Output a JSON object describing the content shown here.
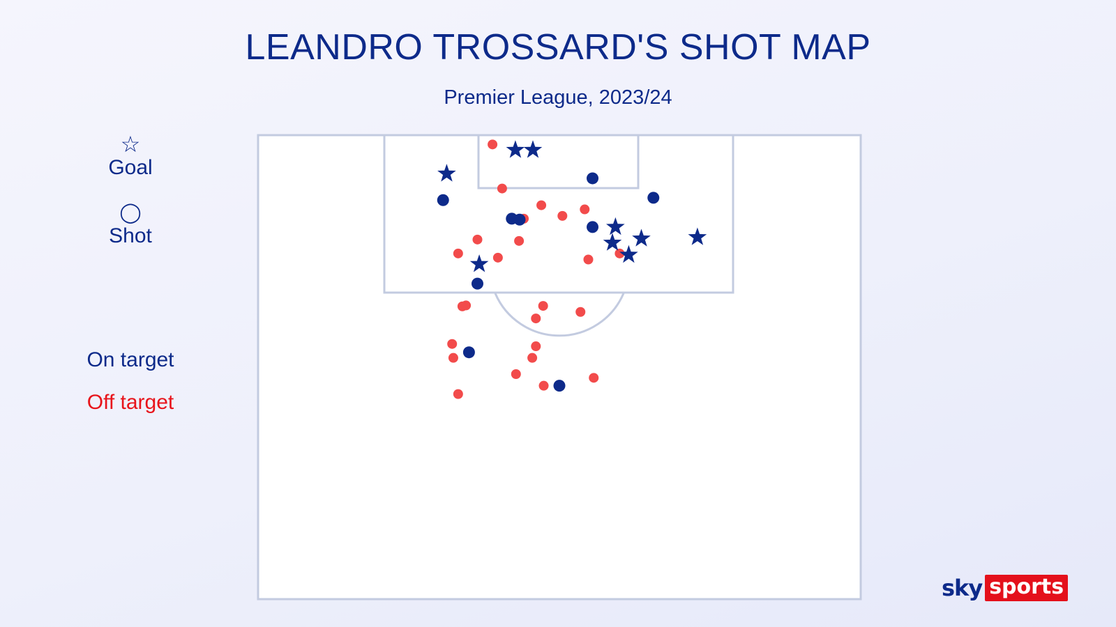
{
  "header": {
    "title": "LEANDRO TROSSARD'S SHOT MAP",
    "subtitle": "Premier League, 2023/24"
  },
  "legend": {
    "goal_symbol": "☆",
    "goal_label": "Goal",
    "shot_symbol": "◯",
    "shot_label": "Shot",
    "on_target_label": "On target",
    "off_target_label": "Off target"
  },
  "colors": {
    "on_target": "#0d2a8a",
    "off_target": "#f24b4b",
    "off_target_text": "#e8141b",
    "pitch_lines": "#c3cbe0",
    "pitch_fill": "#ffffff"
  },
  "logo": {
    "sky": "sky",
    "sports": "sports"
  },
  "chart_data": {
    "type": "scatter",
    "title": "LEANDRO TROSSARD'S SHOT MAP",
    "subtitle": "Premier League, 2023/24",
    "x_unit": "pitch width fraction (0 = left touchline, 1 = right touchline)",
    "y_unit": "distance from goal line as fraction of half-pitch length",
    "goals": [
      {
        "x": 0.427,
        "y": 0.032
      },
      {
        "x": 0.456,
        "y": 0.032
      },
      {
        "x": 0.313,
        "y": 0.083
      },
      {
        "x": 0.588,
        "y": 0.232
      },
      {
        "x": 0.615,
        "y": 0.258
      },
      {
        "x": 0.593,
        "y": 0.198
      },
      {
        "x": 0.636,
        "y": 0.223
      },
      {
        "x": 0.729,
        "y": 0.22
      },
      {
        "x": 0.367,
        "y": 0.278
      }
    ],
    "on_target_shots": [
      {
        "x": 0.555,
        "y": 0.093
      },
      {
        "x": 0.307,
        "y": 0.14
      },
      {
        "x": 0.421,
        "y": 0.18
      },
      {
        "x": 0.434,
        "y": 0.182
      },
      {
        "x": 0.555,
        "y": 0.198
      },
      {
        "x": 0.656,
        "y": 0.135
      },
      {
        "x": 0.364,
        "y": 0.32
      },
      {
        "x": 0.35,
        "y": 0.468
      },
      {
        "x": 0.5,
        "y": 0.54
      }
    ],
    "off_target_shots": [
      {
        "x": 0.389,
        "y": 0.02
      },
      {
        "x": 0.405,
        "y": 0.115
      },
      {
        "x": 0.441,
        "y": 0.18
      },
      {
        "x": 0.47,
        "y": 0.151
      },
      {
        "x": 0.505,
        "y": 0.174
      },
      {
        "x": 0.542,
        "y": 0.16
      },
      {
        "x": 0.364,
        "y": 0.225
      },
      {
        "x": 0.433,
        "y": 0.228
      },
      {
        "x": 0.332,
        "y": 0.255
      },
      {
        "x": 0.398,
        "y": 0.264
      },
      {
        "x": 0.6,
        "y": 0.255
      },
      {
        "x": 0.548,
        "y": 0.268
      },
      {
        "x": 0.345,
        "y": 0.367
      },
      {
        "x": 0.339,
        "y": 0.369
      },
      {
        "x": 0.473,
        "y": 0.368
      },
      {
        "x": 0.535,
        "y": 0.381
      },
      {
        "x": 0.461,
        "y": 0.395
      },
      {
        "x": 0.322,
        "y": 0.45
      },
      {
        "x": 0.461,
        "y": 0.455
      },
      {
        "x": 0.324,
        "y": 0.48
      },
      {
        "x": 0.455,
        "y": 0.48
      },
      {
        "x": 0.428,
        "y": 0.515
      },
      {
        "x": 0.474,
        "y": 0.54
      },
      {
        "x": 0.557,
        "y": 0.523
      },
      {
        "x": 0.332,
        "y": 0.558
      }
    ]
  }
}
